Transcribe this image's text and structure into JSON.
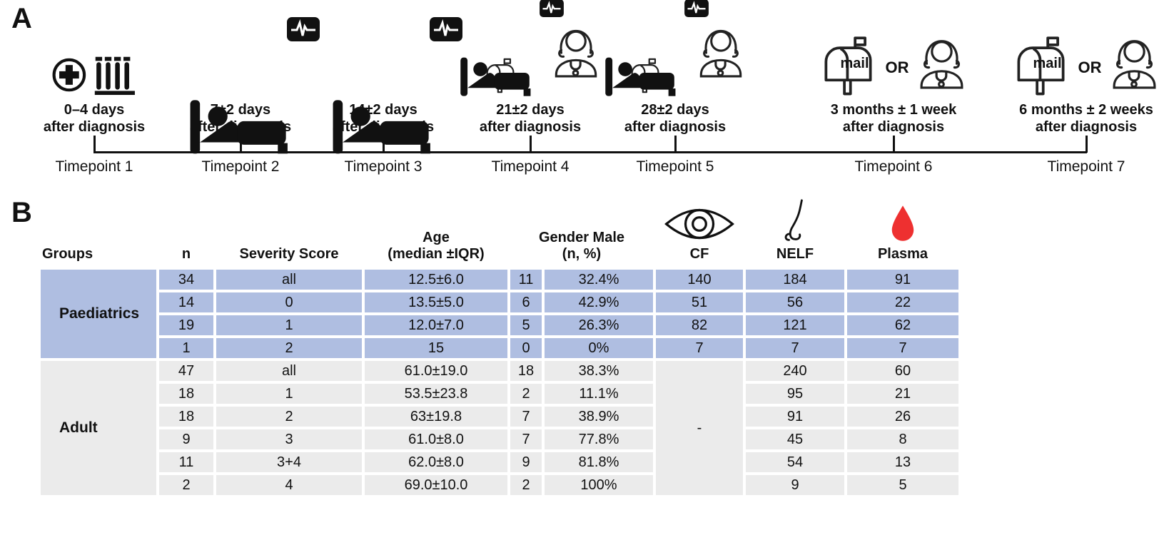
{
  "figure": {
    "panelA_label": "A",
    "panelB_label": "B"
  },
  "colors": {
    "paediatric_row": "#afbee1",
    "adult_row": "#ebebeb",
    "blood_drop": "#ee3030",
    "ink": "#111111"
  },
  "panelA": {
    "timepoints": [
      {
        "type": "start",
        "icons": [
          "medical-cross",
          "test-tubes"
        ],
        "line1": "0–4 days",
        "line2": "after diagnosis",
        "label": "Timepoint 1"
      },
      {
        "type": "bed",
        "icons": [
          "monitor",
          "hospital-bed"
        ],
        "line1": "7±2 days",
        "line2": "after diagnosis",
        "label": "Timepoint 2"
      },
      {
        "type": "bed",
        "icons": [
          "monitor",
          "hospital-bed"
        ],
        "line1": "14±2 days",
        "line2": "after diagnosis",
        "label": "Timepoint 3"
      },
      {
        "type": "bed-mail-doctor",
        "icons": [
          "monitor",
          "hospital-bed",
          "mailbox",
          "doctor"
        ],
        "line1": "21±2 days",
        "line2": "after diagnosis",
        "label": "Timepoint 4"
      },
      {
        "type": "bed-mail-doctor",
        "icons": [
          "monitor",
          "hospital-bed",
          "mailbox",
          "doctor"
        ],
        "line1": "28±2 days",
        "line2": "after diagnosis",
        "label": "Timepoint 5"
      },
      {
        "type": "mail-or-doctor",
        "icons": [
          "mailbox",
          "doctor"
        ],
        "mail_label": "mail",
        "or_label": "OR",
        "line1": "3 months ± 1 week",
        "line2": "after diagnosis",
        "label": "Timepoint 6"
      },
      {
        "type": "mail-or-doctor",
        "icons": [
          "mailbox",
          "doctor"
        ],
        "mail_label": "mail",
        "or_label": "OR",
        "line1": "6 months ± 2 weeks",
        "line2": "after diagnosis",
        "label": "Timepoint 7"
      }
    ]
  },
  "panelB": {
    "header": {
      "groups": "Groups",
      "n": "n",
      "severity": "Severity Score",
      "age_line1": "Age",
      "age_line2": "(median ±IQR)",
      "gender_line1": "Gender Male",
      "gender_line2": "(n, %)",
      "cf": "CF",
      "nelf": "NELF",
      "plasma": "Plasma"
    },
    "groups": [
      {
        "name": "Paediatrics",
        "style": "paediatric",
        "rows": [
          {
            "n": "34",
            "severity": "all",
            "age": "12.5±6.0",
            "gender_n": "11",
            "gender_pct": "32.4%",
            "cf": "140",
            "nelf": "184",
            "plasma": "91"
          },
          {
            "n": "14",
            "severity": "0",
            "age": "13.5±5.0",
            "gender_n": "6",
            "gender_pct": "42.9%",
            "cf": "51",
            "nelf": "56",
            "plasma": "22"
          },
          {
            "n": "19",
            "severity": "1",
            "age": "12.0±7.0",
            "gender_n": "5",
            "gender_pct": "26.3%",
            "cf": "82",
            "nelf": "121",
            "plasma": "62"
          },
          {
            "n": "1",
            "severity": "2",
            "age": "15",
            "gender_n": "0",
            "gender_pct": "0%",
            "cf": "7",
            "nelf": "7",
            "plasma": "7"
          }
        ]
      },
      {
        "name": "Adult",
        "style": "adult",
        "cf_merged": "-",
        "rows": [
          {
            "n": "47",
            "severity": "all",
            "age": "61.0±19.0",
            "gender_n": "18",
            "gender_pct": "38.3%",
            "nelf": "240",
            "plasma": "60"
          },
          {
            "n": "18",
            "severity": "1",
            "age": "53.5±23.8",
            "gender_n": "2",
            "gender_pct": "11.1%",
            "nelf": "95",
            "plasma": "21"
          },
          {
            "n": "18",
            "severity": "2",
            "age": "63±19.8",
            "gender_n": "7",
            "gender_pct": "38.9%",
            "nelf": "91",
            "plasma": "26"
          },
          {
            "n": "9",
            "severity": "3",
            "age": "61.0±8.0",
            "gender_n": "7",
            "gender_pct": "77.8%",
            "nelf": "45",
            "plasma": "8"
          },
          {
            "n": "11",
            "severity": "3+4",
            "age": "62.0±8.0",
            "gender_n": "9",
            "gender_pct": "81.8%",
            "nelf": "54",
            "plasma": "13"
          },
          {
            "n": "2",
            "severity": "4",
            "age": "69.0±10.0",
            "gender_n": "2",
            "gender_pct": "100%",
            "nelf": "9",
            "plasma": "5"
          }
        ]
      }
    ]
  }
}
